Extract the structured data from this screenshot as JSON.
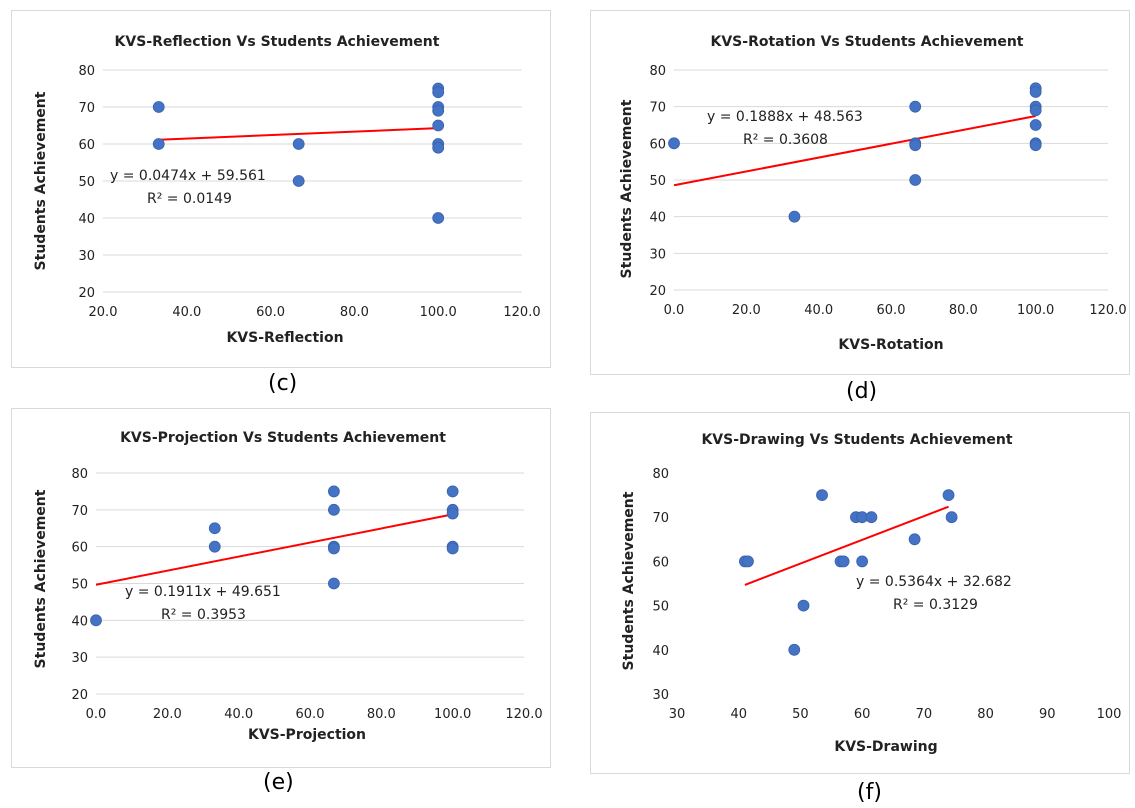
{
  "colors": {
    "marker": "#4472c4",
    "trendline": "#ff0000"
  },
  "chart_data": [
    {
      "id": "c",
      "panel_label": "(c)",
      "type": "scatter",
      "title": "KVS-Reflection Vs Students Achievement",
      "xlabel": "KVS-Reflection",
      "ylabel": "Students Achievement",
      "xlim": [
        20,
        120
      ],
      "ylim": [
        20,
        80
      ],
      "x_ticks": [
        "20.0",
        "40.0",
        "60.0",
        "80.0",
        "100.0",
        "120.0"
      ],
      "y_ticks": [
        "20",
        "30",
        "40",
        "50",
        "60",
        "70",
        "80"
      ],
      "grid": "horizontal",
      "points": [
        [
          33.3,
          70
        ],
        [
          33.3,
          60
        ],
        [
          66.7,
          60
        ],
        [
          66.7,
          50
        ],
        [
          100,
          75
        ],
        [
          100,
          74
        ],
        [
          100,
          70
        ],
        [
          100,
          69
        ],
        [
          100,
          65
        ],
        [
          100,
          60
        ],
        [
          100,
          59
        ],
        [
          100,
          40
        ]
      ],
      "trendline": {
        "slope": 0.0474,
        "intercept": 59.561,
        "x_range": [
          33.3,
          100
        ]
      },
      "equation": "y = 0.0474x + 59.561",
      "r2": "R² = 0.0149"
    },
    {
      "id": "d",
      "panel_label": "(d)",
      "type": "scatter",
      "title": "KVS-Rotation Vs Students Achievement",
      "xlabel": "KVS-Rotation",
      "ylabel": "Students Achievement",
      "xlim": [
        0,
        120
      ],
      "ylim": [
        20,
        80
      ],
      "x_ticks": [
        "0.0",
        "20.0",
        "40.0",
        "60.0",
        "80.0",
        "100.0",
        "120.0"
      ],
      "y_ticks": [
        "20",
        "30",
        "40",
        "50",
        "60",
        "70",
        "80"
      ],
      "grid": "horizontal",
      "points": [
        [
          0,
          60
        ],
        [
          33.3,
          40
        ],
        [
          66.7,
          70
        ],
        [
          66.7,
          60
        ],
        [
          66.7,
          59.5
        ],
        [
          66.7,
          50
        ],
        [
          100,
          75
        ],
        [
          100,
          74
        ],
        [
          100,
          70
        ],
        [
          100,
          69
        ],
        [
          100,
          65
        ],
        [
          100,
          60
        ],
        [
          100,
          59.5
        ]
      ],
      "trendline": {
        "slope": 0.1888,
        "intercept": 48.563,
        "x_range": [
          0,
          100
        ]
      },
      "equation": "y = 0.1888x + 48.563",
      "r2": "R² = 0.3608"
    },
    {
      "id": "e",
      "panel_label": "(e)",
      "type": "scatter",
      "title": "KVS-Projection Vs Students Achievement",
      "xlabel": "KVS-Projection",
      "ylabel": "Students Achievement",
      "xlim": [
        0,
        120
      ],
      "ylim": [
        20,
        80
      ],
      "x_ticks": [
        "0.0",
        "20.0",
        "40.0",
        "60.0",
        "80.0",
        "100.0",
        "120.0"
      ],
      "y_ticks": [
        "20",
        "30",
        "40",
        "50",
        "60",
        "70",
        "80"
      ],
      "grid": "horizontal",
      "points": [
        [
          0,
          40
        ],
        [
          33.3,
          65
        ],
        [
          33.3,
          60
        ],
        [
          66.7,
          75
        ],
        [
          66.7,
          70
        ],
        [
          66.7,
          60
        ],
        [
          66.7,
          59.5
        ],
        [
          66.7,
          50
        ],
        [
          100,
          75
        ],
        [
          100,
          70
        ],
        [
          100,
          69
        ],
        [
          100,
          60
        ],
        [
          100,
          59.5
        ]
      ],
      "trendline": {
        "slope": 0.1911,
        "intercept": 49.651,
        "x_range": [
          0,
          100
        ]
      },
      "equation": "y = 0.1911x + 49.651",
      "r2": "R² = 0.3953"
    },
    {
      "id": "f",
      "panel_label": "(f)",
      "type": "scatter",
      "title": "KVS-Drawing Vs Students Achievement",
      "xlabel": "KVS-Drawing",
      "ylabel": "Students Achievement",
      "xlim": [
        30,
        100
      ],
      "ylim": [
        30,
        80
      ],
      "x_ticks": [
        "30",
        "40",
        "50",
        "60",
        "70",
        "80",
        "90",
        "100"
      ],
      "y_ticks": [
        "30",
        "40",
        "50",
        "60",
        "70",
        "80"
      ],
      "grid": "none",
      "points": [
        [
          41,
          60
        ],
        [
          41.5,
          60
        ],
        [
          49,
          40
        ],
        [
          50.5,
          50
        ],
        [
          53.5,
          75
        ],
        [
          56.5,
          60
        ],
        [
          57,
          60
        ],
        [
          59,
          70
        ],
        [
          60,
          70
        ],
        [
          60,
          60
        ],
        [
          61.5,
          70
        ],
        [
          68.5,
          65
        ],
        [
          74,
          75
        ],
        [
          74.5,
          70
        ]
      ],
      "trendline": {
        "slope": 0.5364,
        "intercept": 32.682,
        "x_range": [
          41,
          74
        ]
      },
      "equation": "y = 0.5364x + 32.682",
      "r2": "R² = 0.3129"
    }
  ]
}
